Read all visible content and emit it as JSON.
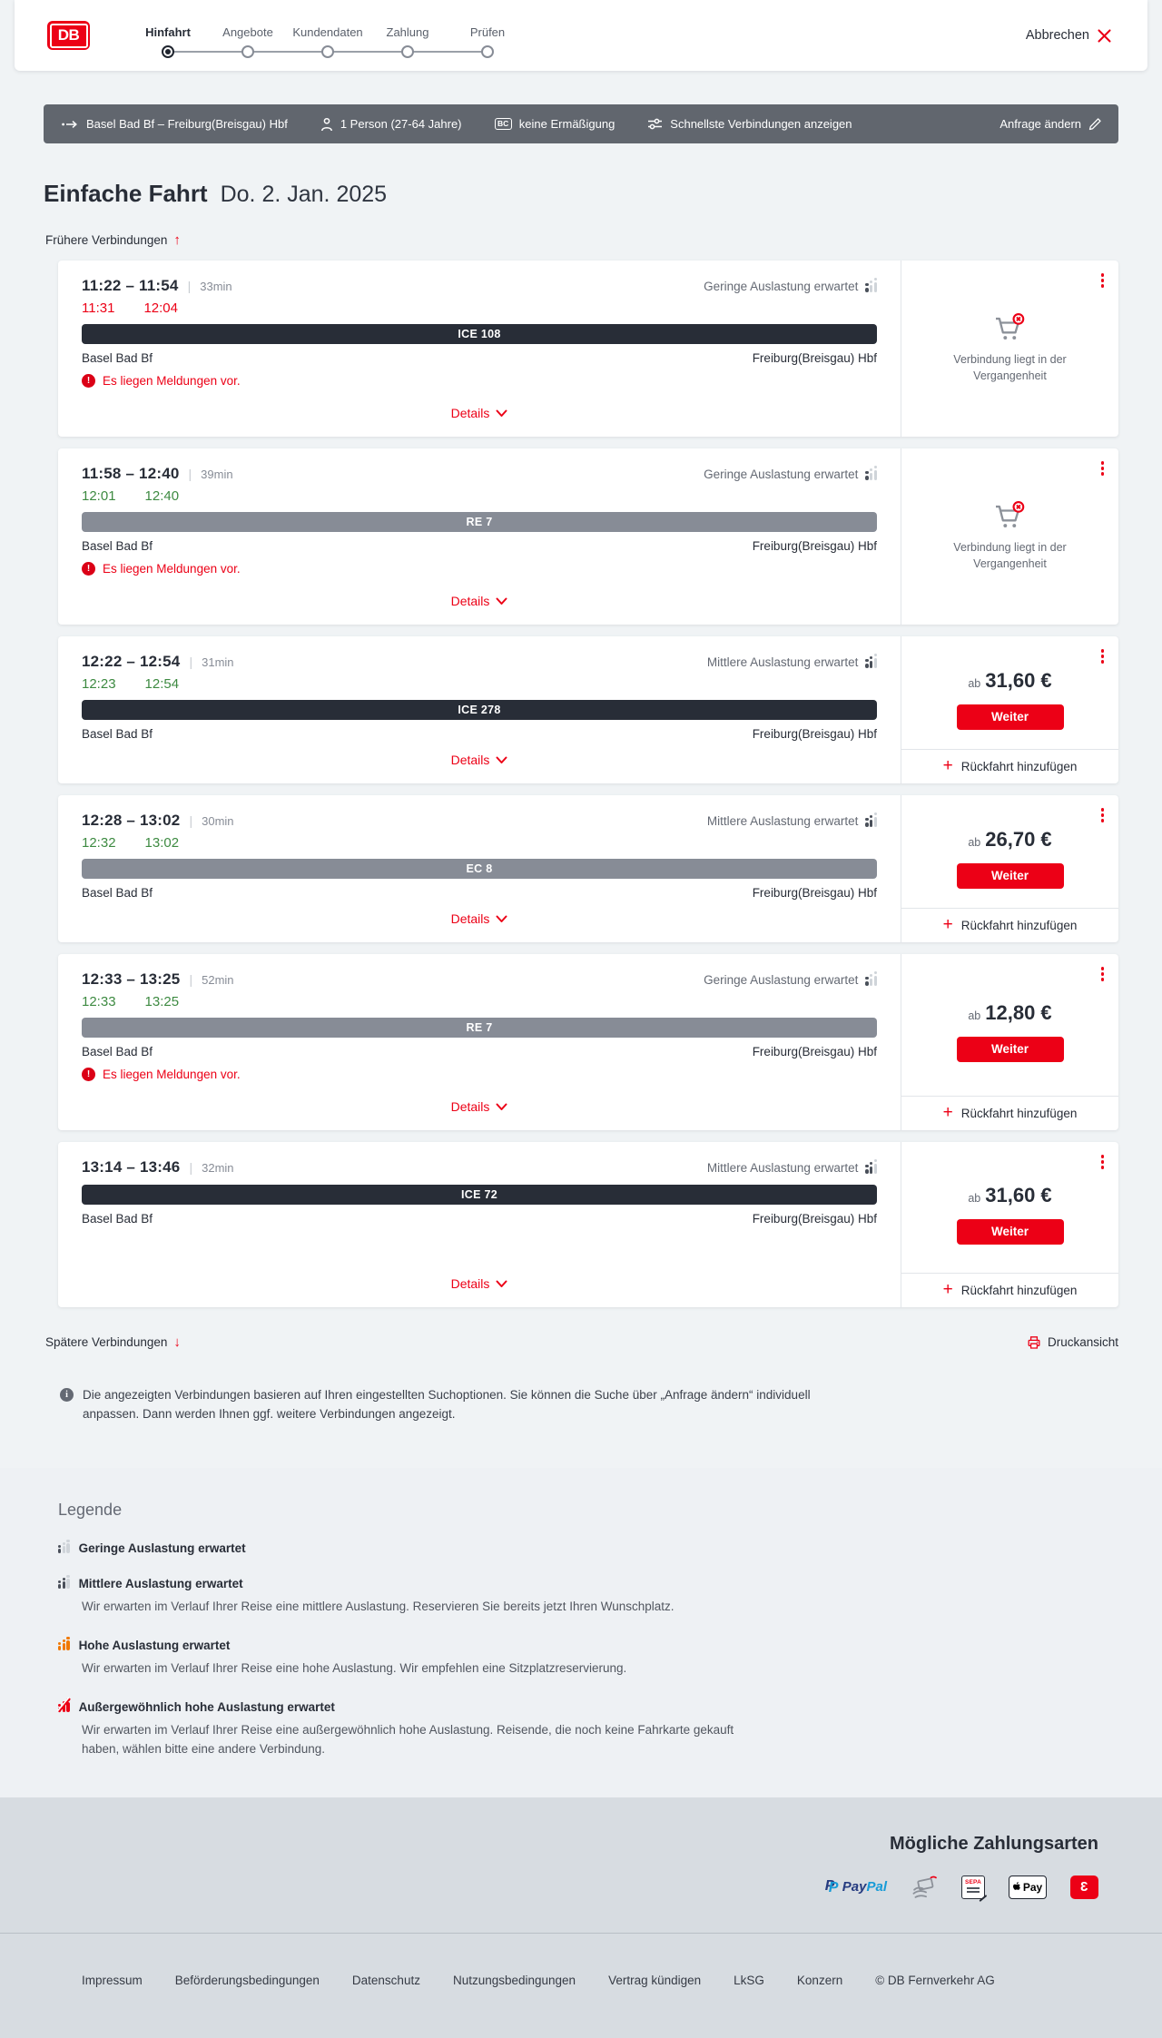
{
  "colors": {
    "db_red": "#ec0016",
    "dark": "#282d37",
    "green": "#3d8a41",
    "orange": "#f07800",
    "bar_gray": "#878c96",
    "strip_gray": "#61666e"
  },
  "header": {
    "logo": "DB",
    "cancel_label": "Abbrechen",
    "steps": [
      {
        "label": "Hinfahrt",
        "active": true
      },
      {
        "label": "Angebote",
        "active": false
      },
      {
        "label": "Kundendaten",
        "active": false
      },
      {
        "label": "Zahlung",
        "active": false
      },
      {
        "label": "Prüfen",
        "active": false
      }
    ]
  },
  "searchbar": {
    "route": "Basel Bad Bf – Freiburg(Breisgau) Hbf",
    "passengers": "1 Person (27-64 Jahre)",
    "bc_badge": "BC",
    "discount": "keine Ermäßigung",
    "fastest": "Schnellste Verbindungen anzeigen",
    "modify": "Anfrage ändern"
  },
  "results": {
    "title": "Einfache Fahrt",
    "date": "Do. 2. Jan. 2025",
    "earlier_label": "Frühere Verbindungen",
    "later_label": "Spätere Verbindungen",
    "print_label": "Druckansicht",
    "details_label": "Details",
    "message_label": "Es liegen Meldungen vor.",
    "past_label": "Verbindung liegt in der Vergangenheit",
    "price_prefix": "ab",
    "continue_label": "Weiter",
    "return_label": "Rückfahrt hinzufügen",
    "info_note": "Die angezeigten Verbindungen basieren auf Ihren eingestellten Suchoptionen. Sie können die Suche über „Anfrage ändern“ individuell anpassen. Dann werden Ihnen ggf. weitere Verbindungen angezeigt.",
    "connections": [
      {
        "time": "11:22 – 11:54",
        "separator": "|",
        "duration": "33min",
        "occupancy": "Geringe Auslastung erwartet",
        "occupancy_level": "low",
        "rt_departure": "11:31",
        "rt_arrival": "12:04",
        "rt_status": "delayed",
        "train": "ICE 108",
        "train_class": "longdistance",
        "from": "Basel Bad Bf",
        "to": "Freiburg(Breisgau) Hbf",
        "has_message": true,
        "panel": "past"
      },
      {
        "time": "11:58 – 12:40",
        "separator": "|",
        "duration": "39min",
        "occupancy": "Geringe Auslastung erwartet",
        "occupancy_level": "low",
        "rt_departure": "12:01",
        "rt_arrival": "12:40",
        "rt_status": "ontime",
        "train": "RE 7",
        "train_class": "regional",
        "from": "Basel Bad Bf",
        "to": "Freiburg(Breisgau) Hbf",
        "has_message": true,
        "panel": "past"
      },
      {
        "time": "12:22 – 12:54",
        "separator": "|",
        "duration": "31min",
        "occupancy": "Mittlere Auslastung erwartet",
        "occupancy_level": "medium",
        "rt_departure": "12:23",
        "rt_arrival": "12:54",
        "rt_status": "ontime",
        "train": "ICE 278",
        "train_class": "longdistance",
        "from": "Basel Bad Bf",
        "to": "Freiburg(Breisgau) Hbf",
        "has_message": false,
        "panel": "price",
        "price": "31,60 €"
      },
      {
        "time": "12:28 – 13:02",
        "separator": "|",
        "duration": "30min",
        "occupancy": "Mittlere Auslastung erwartet",
        "occupancy_level": "medium",
        "rt_departure": "12:32",
        "rt_arrival": "13:02",
        "rt_status": "ontime",
        "train": "EC 8",
        "train_class": "regional",
        "from": "Basel Bad Bf",
        "to": "Freiburg(Breisgau) Hbf",
        "has_message": false,
        "panel": "price",
        "price": "26,70 €"
      },
      {
        "time": "12:33 – 13:25",
        "separator": "|",
        "duration": "52min",
        "occupancy": "Geringe Auslastung erwartet",
        "occupancy_level": "low",
        "rt_departure": "12:33",
        "rt_arrival": "13:25",
        "rt_status": "ontime",
        "train": "RE 7",
        "train_class": "regional",
        "from": "Basel Bad Bf",
        "to": "Freiburg(Breisgau) Hbf",
        "has_message": true,
        "panel": "price",
        "price": "12,80 €"
      },
      {
        "time": "13:14 – 13:46",
        "separator": "|",
        "duration": "32min",
        "occupancy": "Mittlere Auslastung erwartet",
        "occupancy_level": "medium",
        "rt_departure": "",
        "rt_arrival": "",
        "rt_status": "",
        "train": "ICE 72",
        "train_class": "longdistance",
        "from": "Basel Bad Bf",
        "to": "Freiburg(Breisgau) Hbf",
        "has_message": false,
        "panel": "price",
        "price": "31,60 €"
      }
    ]
  },
  "legend": {
    "title": "Legende",
    "items": [
      {
        "label": "Geringe Auslastung erwartet",
        "level": "low",
        "description": ""
      },
      {
        "label": "Mittlere Auslastung erwartet",
        "level": "medium",
        "description": "Wir erwarten im Verlauf Ihrer Reise eine mittlere Auslastung. Reservieren Sie bereits jetzt Ihren Wunschplatz."
      },
      {
        "label": "Hohe Auslastung erwartet",
        "level": "high",
        "description": "Wir erwarten im Verlauf Ihrer Reise eine hohe Auslastung. Wir empfehlen eine Sitzplatzreservierung."
      },
      {
        "label": "Außergewöhnlich hohe Auslastung erwartet",
        "level": "vhigh",
        "description": "Wir erwarten im Verlauf Ihrer Reise eine außergewöhnlich hohe Auslastung. Reisende, die noch keine Fahrkarte gekauft haben, wählen bitte eine andere Verbindung."
      }
    ]
  },
  "payment": {
    "title": "Mögliche Zahlungsarten",
    "paypal_p1": "Pay",
    "paypal_p2": "Pal",
    "paypal_mark": "P",
    "sepa_label": "SEPA",
    "applepay_label": "Pay",
    "redpay_glyph": "3"
  },
  "footer": {
    "links": [
      "Impressum",
      "Beförderungsbedingungen",
      "Datenschutz",
      "Nutzungsbedingungen",
      "Vertrag kündigen",
      "LkSG",
      "Konzern"
    ],
    "copyright": "© DB Fernverkehr AG"
  }
}
